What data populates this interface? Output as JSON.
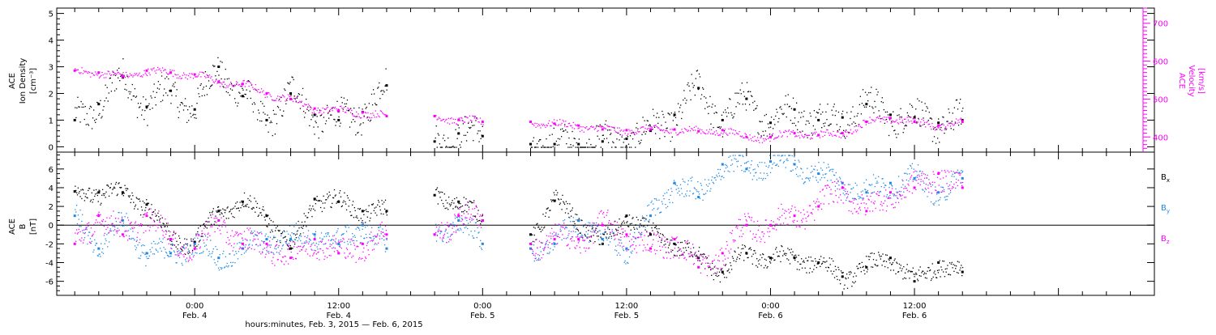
{
  "chart_data": [
    {
      "type": "scatter",
      "panel": "ion-density-velocity",
      "ylabel_left": [
        "ACE",
        "Ion Density",
        "[cm⁻³]"
      ],
      "ylabel_right": [
        "ACE",
        "Velocity",
        "[km/s]"
      ],
      "ylim_left": [
        -0.2,
        5.2
      ],
      "ylim_right": [
        360,
        740
      ],
      "yticks_left": [
        "0",
        "1",
        "2",
        "3",
        "4",
        "5"
      ],
      "yticks_right": [
        "400",
        "500",
        "600",
        "700"
      ],
      "series": [
        {
          "axis": "left",
          "color": "#000000",
          "x": [
            -10,
            -8,
            -6,
            -4,
            -2,
            0,
            2,
            4,
            6,
            8,
            10,
            12,
            14,
            16,
            18,
            20,
            22,
            24,
            26,
            28,
            30,
            32,
            34,
            36,
            38,
            40,
            42,
            44,
            46,
            48,
            50,
            52,
            54,
            56,
            58,
            60,
            62,
            64
          ],
          "values": [
            1.0,
            1.6,
            2.6,
            1.5,
            2.1,
            1.4,
            3.0,
            1.9,
            1.0,
            2.0,
            1.2,
            1.0,
            1.3,
            2.3,
            null,
            0.2,
            0.5,
            0.4,
            null,
            0.1,
            0.1,
            0.1,
            0.2,
            0.3,
            0.6,
            1.2,
            2.2,
            1.0,
            1.8,
            0.9,
            1.4,
            1.0,
            1.1,
            1.6,
            1.2,
            1.1,
            0.9,
            1.0
          ]
        },
        {
          "axis": "right",
          "color": "#ff00ff",
          "x": [
            -10,
            -8,
            -6,
            -4,
            -2,
            0,
            2,
            4,
            6,
            8,
            10,
            12,
            14,
            16,
            18,
            20,
            22,
            24,
            26,
            28,
            30,
            32,
            34,
            36,
            38,
            40,
            42,
            44,
            46,
            48,
            50,
            52,
            54,
            56,
            58,
            60,
            62,
            64
          ],
          "values": [
            575,
            570,
            560,
            575,
            570,
            565,
            545,
            540,
            515,
            500,
            475,
            470,
            465,
            455,
            null,
            455,
            445,
            440,
            null,
            440,
            435,
            430,
            420,
            418,
            420,
            420,
            415,
            418,
            400,
            400,
            410,
            405,
            410,
            440,
            450,
            440,
            430,
            440
          ]
        }
      ]
    },
    {
      "type": "scatter",
      "panel": "imf-components",
      "ylabel_left": [
        "ACE",
        "B",
        "[nT]"
      ],
      "ylim": [
        -7.5,
        7.8
      ],
      "yticks": [
        "-6",
        "-4",
        "-2",
        "0",
        "2",
        "4",
        "6"
      ],
      "zero_line": true,
      "legend": [
        "Bx",
        "By",
        "Bz"
      ],
      "legend_placement": "right",
      "series": [
        {
          "name": "Bx",
          "color": "#000000",
          "x": [
            -10,
            -8,
            -6,
            -4,
            -2,
            0,
            2,
            4,
            6,
            8,
            10,
            12,
            14,
            16,
            18,
            20,
            22,
            24,
            26,
            28,
            30,
            32,
            34,
            36,
            38,
            40,
            42,
            44,
            46,
            48,
            50,
            52,
            54,
            56,
            58,
            60,
            62,
            64
          ],
          "values": [
            3.6,
            3.5,
            3.5,
            2.2,
            -1.5,
            -1.8,
            1.5,
            2.5,
            1.0,
            -2.5,
            2.8,
            2.5,
            1.5,
            1.5,
            null,
            3.2,
            2.5,
            0.5,
            null,
            -1.0,
            2.6,
            0.5,
            -2.0,
            1.0,
            -1.0,
            -2.0,
            -3.5,
            -5.0,
            -3.0,
            -3.5,
            -3.5,
            -4.0,
            -5.5,
            -4.5,
            -3.5,
            -6.0,
            -4.0,
            -5.0
          ]
        },
        {
          "name": "By",
          "color": "#1e88e5",
          "x": [
            -10,
            -8,
            -6,
            -4,
            -2,
            0,
            2,
            4,
            6,
            8,
            10,
            12,
            14,
            16,
            18,
            20,
            22,
            24,
            26,
            28,
            30,
            32,
            34,
            36,
            38,
            40,
            42,
            44,
            46,
            48,
            50,
            52,
            54,
            56,
            58,
            60,
            62,
            64
          ],
          "values": [
            1.0,
            -2.5,
            0.5,
            -3.0,
            -3.0,
            -2.0,
            -3.5,
            -2.5,
            -1.5,
            -1.5,
            -1.0,
            -2.0,
            0.0,
            -2.5,
            null,
            -1.0,
            0.5,
            -2.0,
            null,
            -2.5,
            -2.0,
            0.5,
            -1.5,
            -2.5,
            1.0,
            4.5,
            3.0,
            6.5,
            6.0,
            6.8,
            6.5,
            5.5,
            4.5,
            3.5,
            4.5,
            5.0,
            3.5,
            5.0
          ]
        },
        {
          "name": "Bz",
          "color": "#ff00ff",
          "x": [
            -10,
            -8,
            -6,
            -4,
            -2,
            0,
            2,
            4,
            6,
            8,
            10,
            12,
            14,
            16,
            18,
            20,
            22,
            24,
            26,
            28,
            30,
            32,
            34,
            36,
            38,
            40,
            42,
            44,
            46,
            48,
            50,
            52,
            54,
            56,
            58,
            60,
            62,
            64
          ],
          "values": [
            -2.0,
            1.0,
            -1.0,
            1.0,
            -1.5,
            -2.5,
            0.5,
            -2.0,
            -2.0,
            -3.5,
            -1.5,
            -3.0,
            -2.0,
            -1.0,
            null,
            -1.0,
            1.0,
            0.5,
            null,
            -2.0,
            -1.5,
            -1.5,
            0.0,
            -1.0,
            -2.5,
            -1.5,
            -4.5,
            -3.0,
            0.0,
            0.0,
            1.0,
            2.0,
            4.0,
            1.5,
            3.5,
            4.0,
            5.5,
            4.0
          ]
        }
      ]
    }
  ],
  "x_axis": {
    "range_hours": [
      -11.5,
      80
    ],
    "major_ticks": [
      {
        "hour": 0,
        "time": "0:00",
        "date": "Feb. 4"
      },
      {
        "hour": 12,
        "time": "12:00",
        "date": "Feb. 4"
      },
      {
        "hour": 24,
        "time": "0:00",
        "date": "Feb. 5"
      },
      {
        "hour": 36,
        "time": "12:00",
        "date": "Feb. 5"
      },
      {
        "hour": 48,
        "time": "0:00",
        "date": "Feb. 6"
      },
      {
        "hour": 60,
        "time": "12:00",
        "date": "Feb. 6"
      }
    ],
    "xlabel": "hours:minutes, Feb.  3, 2015 — Feb.  6, 2015"
  },
  "legend_labels": {
    "bx_main": "B",
    "bx_sub": "x",
    "by_main": "B",
    "by_sub": "y",
    "bz_main": "B",
    "bz_sub": "z"
  },
  "colors": {
    "density": "#000000",
    "velocity": "#ff00ff",
    "bx": "#000000",
    "by": "#1e88e5",
    "bz": "#ff00ff",
    "axis": "#000000",
    "zero_line": "#000000"
  }
}
